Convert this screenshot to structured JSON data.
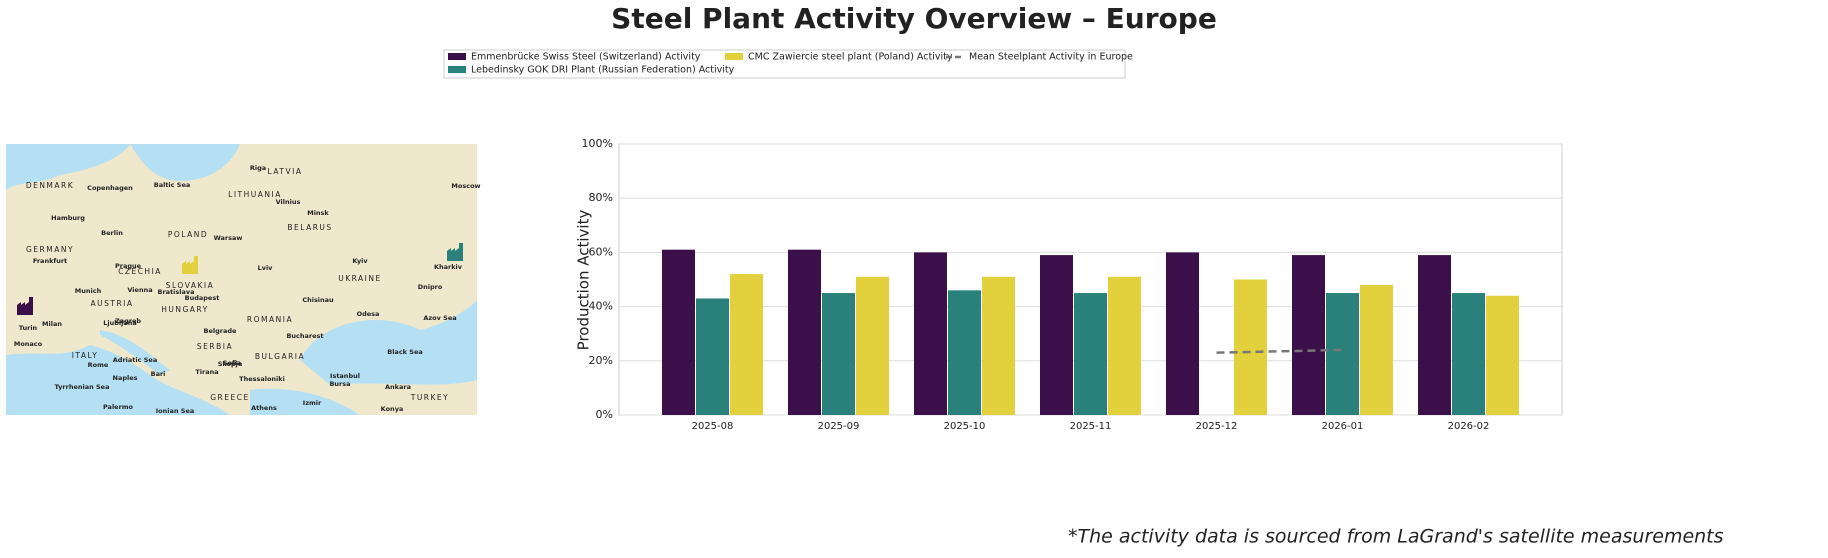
{
  "chart_data": {
    "type": "bar",
    "title": "Steel Plant Activity Overview – Europe",
    "ylabel": "Production Activity",
    "footnote": "*The activity data is sourced from LaGrand's satellite measurements",
    "categories": [
      "2025-08",
      "2025-09",
      "2025-10",
      "2025-11",
      "2025-12",
      "2026-01",
      "2026-02"
    ],
    "series": [
      {
        "name": "Emmenbrücke Swiss Steel (Switzerland) Activity",
        "color": "#3b0f4a",
        "values": [
          61,
          61,
          60,
          59,
          60,
          59,
          59
        ]
      },
      {
        "name": "Lebedinsky GOK DRI Plant (Russian Federation) Activity",
        "color": "#2a817b",
        "values": [
          43,
          45,
          46,
          45,
          null,
          45,
          45
        ]
      },
      {
        "name": "CMC Zawiercie steel plant (Poland) Activity",
        "color": "#e2d03c",
        "values": [
          52,
          51,
          51,
          51,
          50,
          48,
          44
        ]
      },
      {
        "name": "Mean Steelplant Activity in Europe",
        "color": "#777777",
        "type": "line",
        "dashed": true,
        "values": [
          null,
          null,
          null,
          null,
          23,
          24,
          null
        ]
      }
    ],
    "ylim": [
      0,
      100
    ],
    "yticks": [
      {
        "value": 0,
        "label": "0%"
      },
      {
        "value": 20,
        "label": "20%"
      },
      {
        "value": 40,
        "label": "40%"
      },
      {
        "value": 60,
        "label": "60%"
      },
      {
        "value": 80,
        "label": "80%"
      },
      {
        "value": 100,
        "label": "100%"
      }
    ],
    "grid": true,
    "legend": "top"
  },
  "map": {
    "labels": [
      "DENMARK",
      "Copenhagen",
      "Baltic Sea",
      "LITHUANIA",
      "LATVIA",
      "Riga",
      "Vilnius",
      "Minsk",
      "BELARUS",
      "Hamburg",
      "Berlin",
      "POLAND",
      "Warsaw",
      "GERMANY",
      "Frankfurt",
      "Prague",
      "CZECHIA",
      "Munich",
      "Vienna",
      "Bratislava",
      "SLOVAKIA",
      "Budapest",
      "HUNGARY",
      "AUSTRIA",
      "Lviv",
      "UKRAINE",
      "Kyiv",
      "Dnipro",
      "Kharkiv",
      "Chisinau",
      "Odesa",
      "ROMANIA",
      "Bucharest",
      "Belgrade",
      "SERBIA",
      "Sofia",
      "BULGARIA",
      "Black Sea",
      "Azov Sea",
      "Zagreb",
      "Ljubljana",
      "Milan",
      "Turin",
      "ITALY",
      "Rome",
      "Naples",
      "Bari",
      "Adriatic Sea",
      "Skopje",
      "Tirana",
      "Thessaloniki",
      "GREECE",
      "Athens",
      "Istanbul",
      "Bursa",
      "Ankara",
      "Izmir",
      "Konya",
      "TURKEY",
      "Palermo",
      "Tyrrhenian Sea",
      "Ionian Sea",
      "Monaco",
      "Moscow"
    ]
  }
}
